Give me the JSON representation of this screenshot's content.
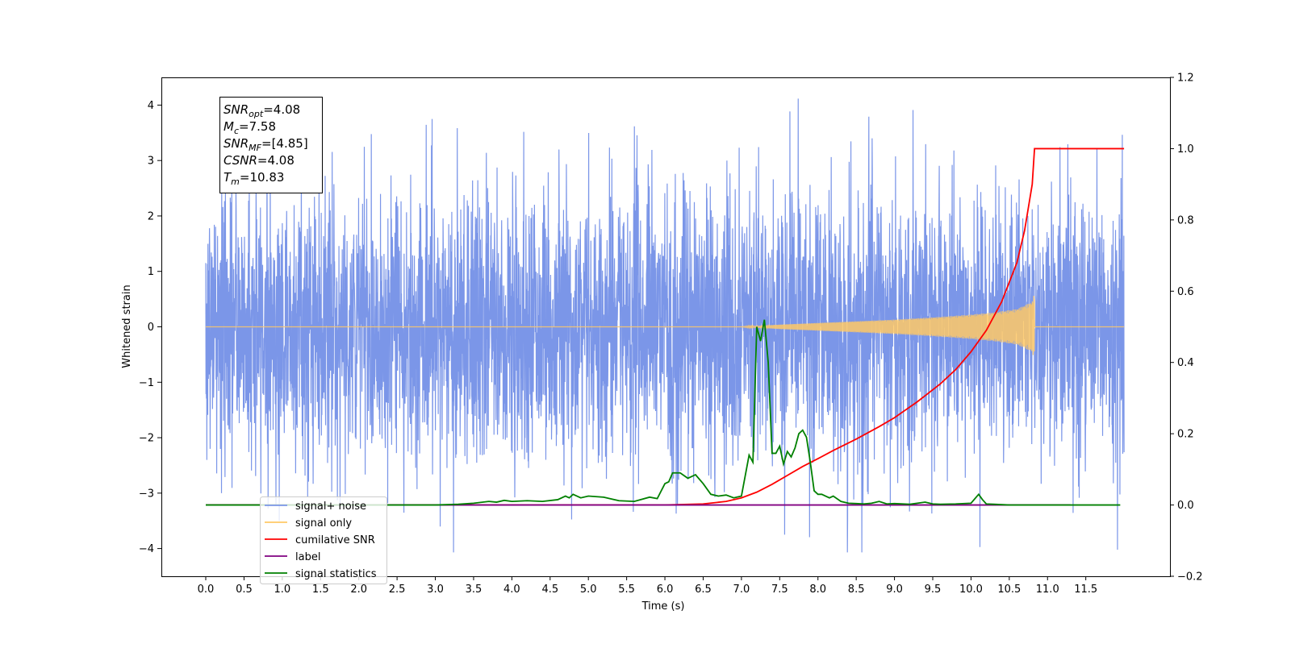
{
  "chart_data": {
    "type": "line",
    "xlabel": "Time (s)",
    "ylabel": "Whitened strain",
    "xlim": [
      -0.58,
      12.6
    ],
    "ylim_left": [
      -4.5,
      4.5
    ],
    "ylim_right": [
      -0.2,
      1.2
    ],
    "x_ticks": [
      0.0,
      0.5,
      1.0,
      1.5,
      2.0,
      2.5,
      3.0,
      3.5,
      4.0,
      4.5,
      5.0,
      5.5,
      6.0,
      6.5,
      7.0,
      7.5,
      8.0,
      8.5,
      9.0,
      9.5,
      10.0,
      10.5,
      11.0,
      11.5
    ],
    "x_tick_labels": [
      "0.0",
      "0.5",
      "1.0",
      "1.5",
      "2.0",
      "2.5",
      "3.0",
      "3.5",
      "4.0",
      "4.5",
      "5.0",
      "5.5",
      "6.0",
      "6.5",
      "7.0",
      "7.5",
      "8.0",
      "8.5",
      "9.0",
      "9.5",
      "10.0",
      "10.5",
      "11.0",
      "11.5"
    ],
    "y_left_ticks": [
      -4,
      -3,
      -2,
      -1,
      0,
      1,
      2,
      3,
      4
    ],
    "y_left_tick_labels": [
      "−4",
      "−3",
      "−2",
      "−1",
      "0",
      "1",
      "2",
      "3",
      "4"
    ],
    "y_right_ticks": [
      -0.2,
      0.0,
      0.2,
      0.4,
      0.6,
      0.8,
      1.0,
      1.2
    ],
    "y_right_tick_labels": [
      "−0.2",
      "0.0",
      "0.2",
      "0.4",
      "0.6",
      "0.8",
      "1.0",
      "1.2"
    ],
    "series": [
      {
        "name": "signal+ noise",
        "axis": "left",
        "color": "#7b96e8",
        "note_pattern": "noise",
        "x_range": [
          0.0,
          12.0
        ],
        "typical_amplitude": 2.0,
        "max": 4.13,
        "min": -4.07
      },
      {
        "name": "signal only",
        "axis": "left",
        "color": "#ffc966",
        "pattern": "chirp",
        "x_range": [
          0.0,
          12.0
        ],
        "envelope_x": [
          7.0,
          7.5,
          8.0,
          8.5,
          9.0,
          9.5,
          10.0,
          10.3,
          10.6,
          10.8,
          10.83
        ],
        "envelope_y": [
          0.0,
          0.04,
          0.07,
          0.1,
          0.13,
          0.17,
          0.22,
          0.26,
          0.32,
          0.45,
          0.6
        ]
      },
      {
        "name": "cumilative SNR",
        "axis": "right",
        "color": "#ff0000",
        "x": [
          0.0,
          6.0,
          6.5,
          6.8,
          7.0,
          7.2,
          7.4,
          7.6,
          7.8,
          8.0,
          8.2,
          8.5,
          8.8,
          9.0,
          9.3,
          9.6,
          9.8,
          10.0,
          10.2,
          10.4,
          10.6,
          10.7,
          10.8,
          10.83,
          12.0
        ],
        "y": [
          0.0,
          0.0,
          0.003,
          0.01,
          0.02,
          0.036,
          0.058,
          0.083,
          0.108,
          0.13,
          0.153,
          0.185,
          0.22,
          0.245,
          0.29,
          0.34,
          0.38,
          0.43,
          0.49,
          0.57,
          0.68,
          0.77,
          0.9,
          1.0,
          1.0
        ]
      },
      {
        "name": "label",
        "axis": "right",
        "color": "#800080",
        "x": [
          0.0,
          11.3
        ],
        "y": [
          0.0,
          0.0
        ]
      },
      {
        "name": "signal statistics",
        "axis": "right",
        "color": "#008000",
        "x": [
          0.0,
          3.0,
          3.3,
          3.5,
          3.7,
          3.8,
          3.9,
          4.0,
          4.2,
          4.4,
          4.6,
          4.7,
          4.75,
          4.8,
          4.9,
          5.0,
          5.2,
          5.4,
          5.6,
          5.8,
          5.9,
          6.0,
          6.05,
          6.1,
          6.2,
          6.3,
          6.4,
          6.5,
          6.6,
          6.7,
          6.8,
          6.9,
          7.0,
          7.1,
          7.15,
          7.2,
          7.25,
          7.3,
          7.35,
          7.4,
          7.45,
          7.5,
          7.55,
          7.6,
          7.65,
          7.7,
          7.75,
          7.8,
          7.85,
          7.9,
          7.95,
          8.0,
          8.05,
          8.1,
          8.15,
          8.2,
          8.3,
          8.4,
          8.5,
          8.6,
          8.7,
          8.8,
          8.9,
          9.0,
          9.2,
          9.4,
          9.5,
          9.6,
          9.8,
          10.0,
          10.1,
          10.15,
          10.2,
          10.3,
          10.5,
          11.0,
          11.5,
          11.95
        ],
        "y": [
          0.0,
          0.0,
          0.002,
          0.005,
          0.01,
          0.008,
          0.013,
          0.01,
          0.012,
          0.01,
          0.015,
          0.025,
          0.02,
          0.03,
          0.02,
          0.025,
          0.022,
          0.012,
          0.01,
          0.022,
          0.018,
          0.06,
          0.065,
          0.09,
          0.09,
          0.075,
          0.085,
          0.06,
          0.03,
          0.025,
          0.028,
          0.02,
          0.025,
          0.14,
          0.12,
          0.5,
          0.46,
          0.52,
          0.4,
          0.145,
          0.145,
          0.165,
          0.115,
          0.15,
          0.135,
          0.16,
          0.2,
          0.21,
          0.19,
          0.12,
          0.04,
          0.03,
          0.03,
          0.025,
          0.02,
          0.025,
          0.01,
          0.005,
          0.004,
          0.003,
          0.005,
          0.01,
          0.003,
          0.004,
          0.002,
          0.008,
          0.003,
          0.002,
          0.003,
          0.005,
          0.03,
          0.015,
          0.003,
          0.002,
          0.0,
          0.0,
          0.0,
          0.0
        ]
      }
    ],
    "legend": {
      "position": "lower-left",
      "entries": [
        {
          "label": "signal+ noise",
          "color": "#7b96e8"
        },
        {
          "label": "signal only",
          "color": "#ffc966"
        },
        {
          "label": "cumilative SNR",
          "color": "#ff0000"
        },
        {
          "label": "label",
          "color": "#800080"
        },
        {
          "label": "signal statistics",
          "color": "#008000"
        }
      ]
    },
    "annotation": {
      "position": "top-left",
      "lines": [
        {
          "main": "SNR",
          "sub": "opt",
          "value": "=4.08"
        },
        {
          "main": "M",
          "sub": "c",
          "value": "=7.58"
        },
        {
          "main": "SNR",
          "sub": "MF",
          "value": "=[4.85]"
        },
        {
          "main": "CSNR",
          "sub": "",
          "value": "=4.08"
        },
        {
          "main": "T",
          "sub": "m",
          "value": "=10.83"
        }
      ]
    }
  }
}
